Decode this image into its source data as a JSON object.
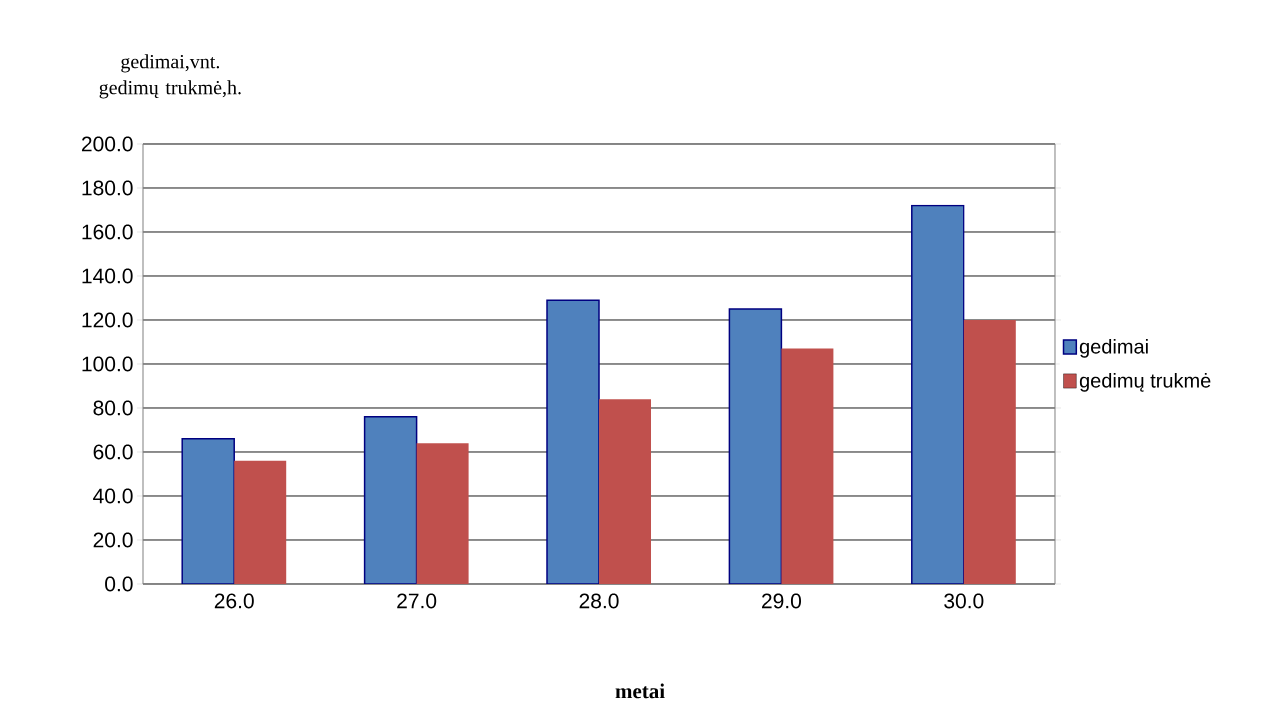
{
  "chart_data": {
    "type": "bar",
    "xlabel": "metai",
    "ylabel": "gedimai,vnt. gedimų trukmė,h.",
    "categories": [
      "26.0",
      "27.0",
      "28.0",
      "29.0",
      "30.0"
    ],
    "series": [
      {
        "name": "gedimai",
        "color": "#4f81bd",
        "values": [
          66,
          76,
          129,
          125,
          172
        ]
      },
      {
        "name": "gedimų trukmė",
        "color": "#c0504d",
        "values": [
          56,
          64,
          84,
          107,
          120
        ]
      }
    ],
    "ylim": [
      0,
      200
    ],
    "yticks": [
      {
        "value": 0,
        "label": "0.0"
      },
      {
        "value": 20,
        "label": "20.0"
      },
      {
        "value": 40,
        "label": "40.0"
      },
      {
        "value": 60,
        "label": "60.0"
      },
      {
        "value": 80,
        "label": "80.0"
      },
      {
        "value": 100,
        "label": "100.0"
      },
      {
        "value": 120,
        "label": "120.0"
      },
      {
        "value": 140,
        "label": "140.0"
      },
      {
        "value": 160,
        "label": "160.0"
      },
      {
        "value": 180,
        "label": "180.0"
      },
      {
        "value": 200,
        "label": "200.0"
      }
    ],
    "grid": "y",
    "legend": "right"
  }
}
